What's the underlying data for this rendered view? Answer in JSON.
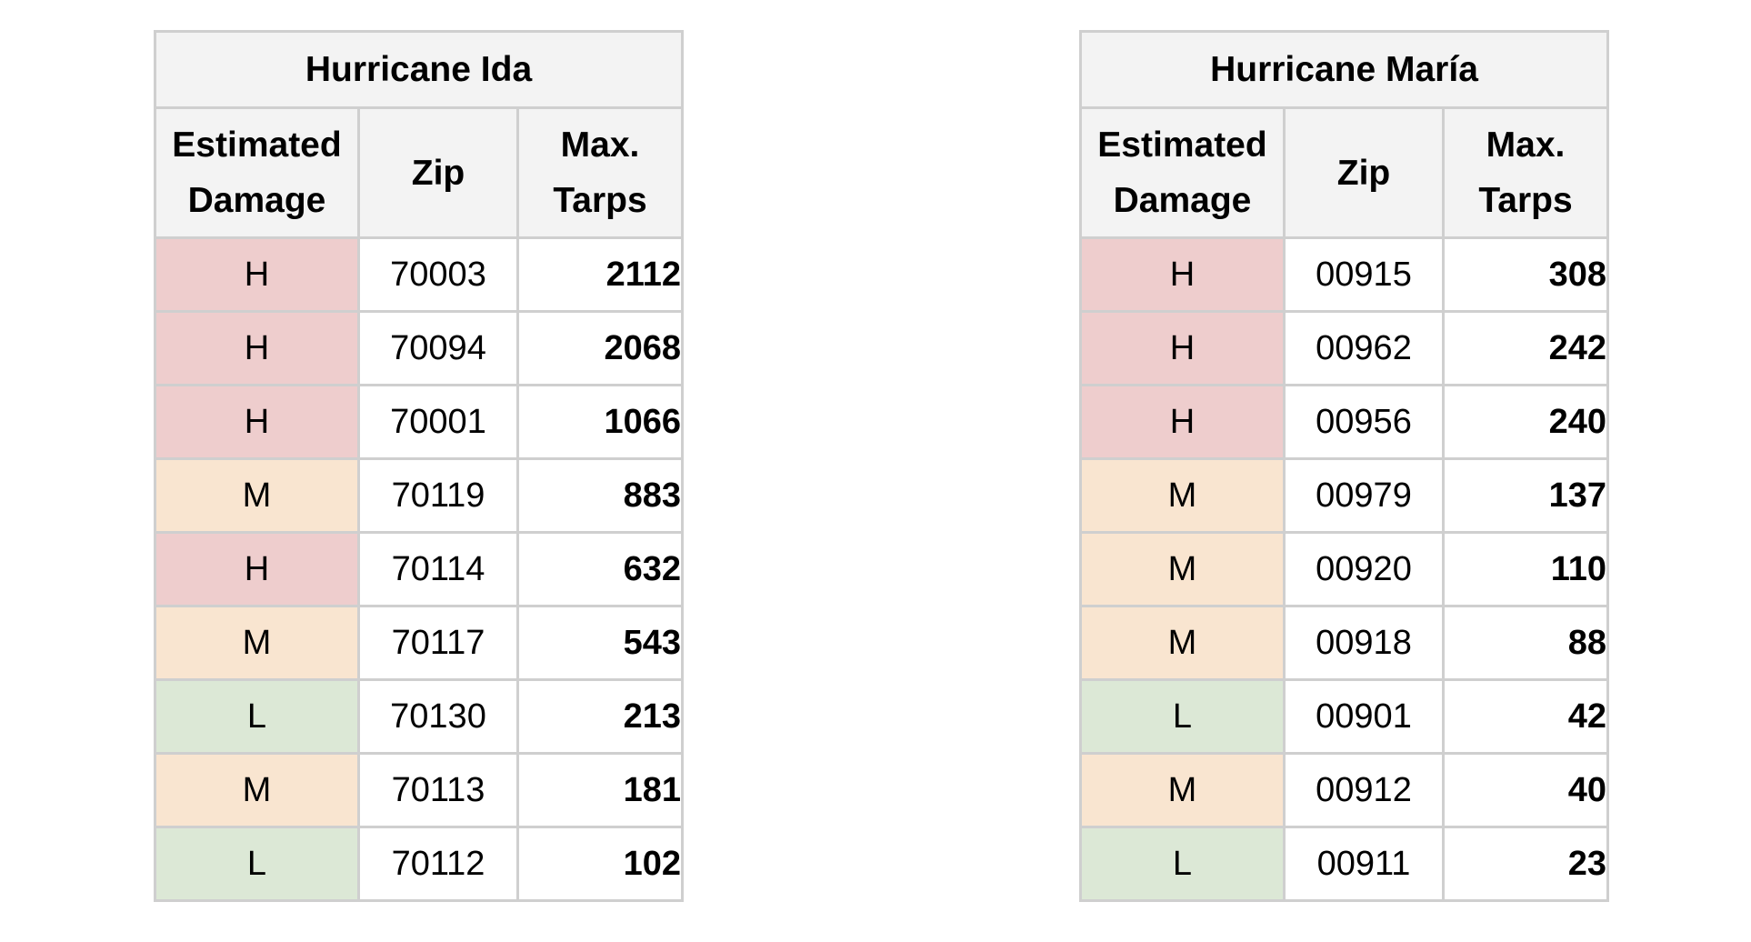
{
  "colors": {
    "H": "#eecdcd",
    "M": "#f9e5d0",
    "L": "#dce8d6",
    "header_bg": "#f3f3f3",
    "border": "#cfcfcf"
  },
  "tables": [
    {
      "title": "Hurricane Ida",
      "headers": {
        "damage": "Estimated Damage",
        "zip": "Zip",
        "tarps": "Max. Tarps"
      },
      "rows": [
        {
          "damage": "H",
          "zip": "70003",
          "tarps": "2112"
        },
        {
          "damage": "H",
          "zip": "70094",
          "tarps": "2068"
        },
        {
          "damage": "H",
          "zip": "70001",
          "tarps": "1066"
        },
        {
          "damage": "M",
          "zip": "70119",
          "tarps": "883"
        },
        {
          "damage": "H",
          "zip": "70114",
          "tarps": "632"
        },
        {
          "damage": "M",
          "zip": "70117",
          "tarps": "543"
        },
        {
          "damage": "L",
          "zip": "70130",
          "tarps": "213"
        },
        {
          "damage": "M",
          "zip": "70113",
          "tarps": "181"
        },
        {
          "damage": "L",
          "zip": "70112",
          "tarps": "102"
        }
      ]
    },
    {
      "title": "Hurricane María",
      "headers": {
        "damage": "Estimated Damage",
        "zip": "Zip",
        "tarps": "Max. Tarps"
      },
      "rows": [
        {
          "damage": "H",
          "zip": "00915",
          "tarps": "308"
        },
        {
          "damage": "H",
          "zip": "00962",
          "tarps": "242"
        },
        {
          "damage": "H",
          "zip": "00956",
          "tarps": "240"
        },
        {
          "damage": "M",
          "zip": "00979",
          "tarps": "137"
        },
        {
          "damage": "M",
          "zip": "00920",
          "tarps": "110"
        },
        {
          "damage": "M",
          "zip": "00918",
          "tarps": "88"
        },
        {
          "damage": "L",
          "zip": "00901",
          "tarps": "42"
        },
        {
          "damage": "M",
          "zip": "00912",
          "tarps": "40"
        },
        {
          "damage": "L",
          "zip": "00911",
          "tarps": "23"
        }
      ]
    }
  ]
}
